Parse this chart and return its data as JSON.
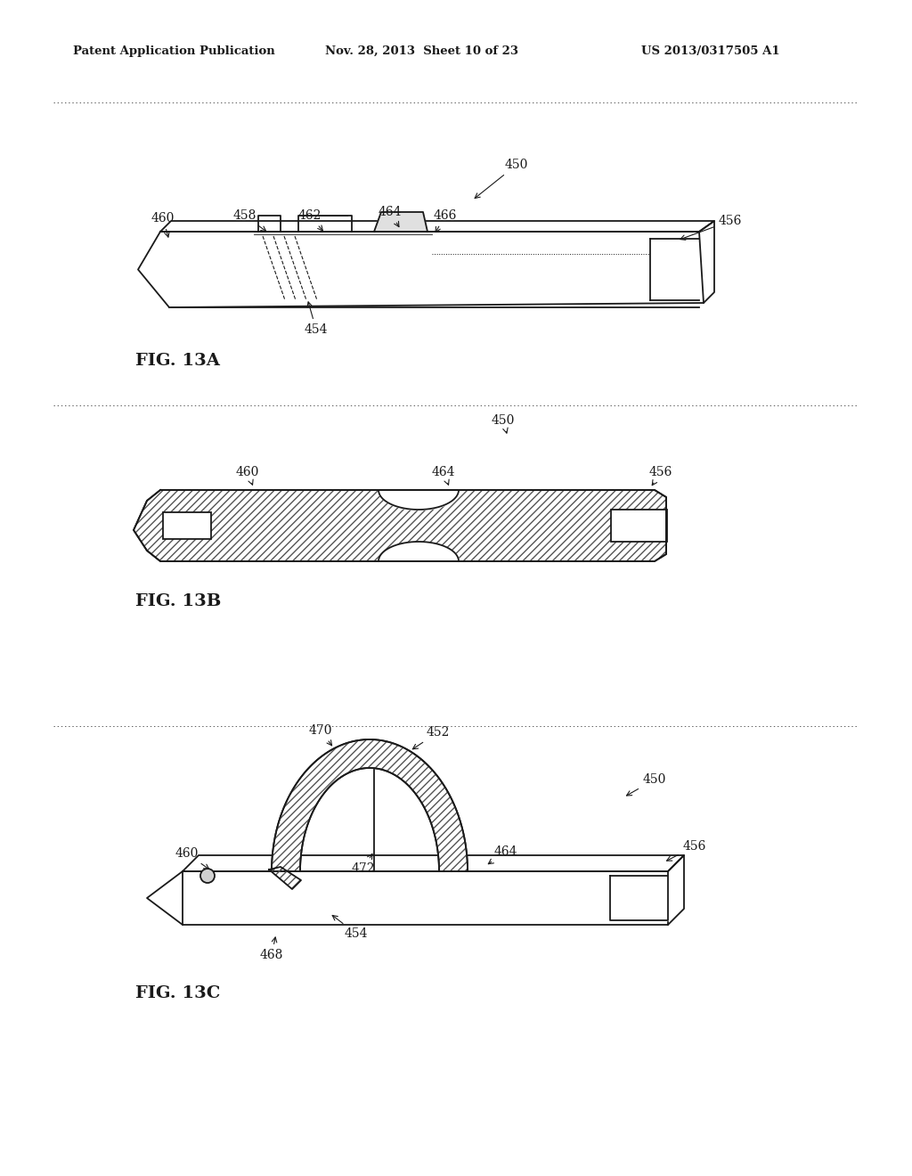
{
  "header_left": "Patent Application Publication",
  "header_mid": "Nov. 28, 2013  Sheet 10 of 23",
  "header_right": "US 2013/0317505 A1",
  "fig13a_label": "FIG. 13A",
  "fig13b_label": "FIG. 13B",
  "fig13c_label": "FIG. 13C",
  "bg_color": "#ffffff",
  "line_color": "#1a1a1a"
}
